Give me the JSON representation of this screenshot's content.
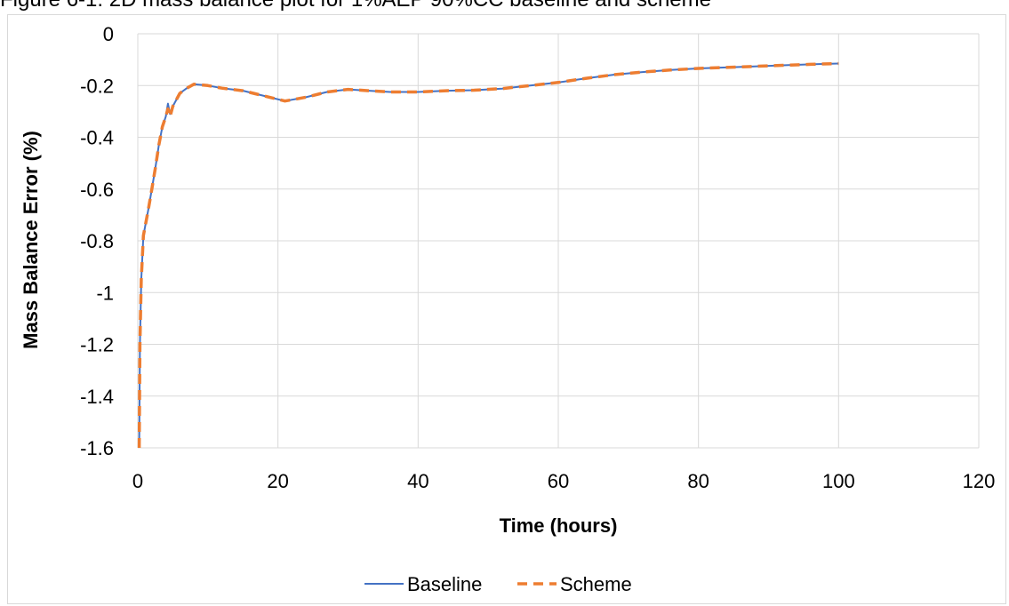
{
  "caption": "Figure 6-1: 2D mass balance plot for 1%AEP 90%CC baseline and scheme",
  "chart_data": {
    "type": "line",
    "title": "",
    "xlabel": "Time (hours)",
    "ylabel": "Mass Balance Error (%)",
    "xlim": [
      0,
      120
    ],
    "ylim": [
      -1.6,
      0
    ],
    "xticks": [
      0,
      20,
      40,
      60,
      80,
      100,
      120
    ],
    "yticks": [
      0,
      -0.2,
      -0.4,
      -0.6,
      -0.8,
      -1,
      -1.2,
      -1.4,
      -1.6
    ],
    "xtick_labels": [
      "0",
      "20",
      "40",
      "60",
      "80",
      "100",
      "120"
    ],
    "ytick_labels": [
      "0",
      "-0.2",
      "-0.4",
      "-0.6",
      "-0.8",
      "-1",
      "-1.2",
      "-1.4",
      "-1.6"
    ],
    "grid": true,
    "legend_position": "bottom",
    "series": [
      {
        "name": "Baseline",
        "color": "#4472c4",
        "style": "solid",
        "points": [
          [
            0.2,
            -1.6
          ],
          [
            0.3,
            -1.2
          ],
          [
            0.5,
            -0.95
          ],
          [
            0.8,
            -0.78
          ],
          [
            1.5,
            -0.68
          ],
          [
            2,
            -0.6
          ],
          [
            2.5,
            -0.52
          ],
          [
            3,
            -0.43
          ],
          [
            3.5,
            -0.36
          ],
          [
            4,
            -0.32
          ],
          [
            4.3,
            -0.27
          ],
          [
            4.6,
            -0.31
          ],
          [
            5,
            -0.28
          ],
          [
            6,
            -0.23
          ],
          [
            7,
            -0.21
          ],
          [
            8,
            -0.195
          ],
          [
            10,
            -0.2
          ],
          [
            12,
            -0.21
          ],
          [
            15,
            -0.22
          ],
          [
            18,
            -0.24
          ],
          [
            21,
            -0.26
          ],
          [
            24,
            -0.245
          ],
          [
            27,
            -0.225
          ],
          [
            30,
            -0.215
          ],
          [
            33,
            -0.22
          ],
          [
            36,
            -0.225
          ],
          [
            40,
            -0.225
          ],
          [
            44,
            -0.22
          ],
          [
            48,
            -0.218
          ],
          [
            52,
            -0.212
          ],
          [
            56,
            -0.2
          ],
          [
            60,
            -0.188
          ],
          [
            64,
            -0.172
          ],
          [
            68,
            -0.158
          ],
          [
            72,
            -0.148
          ],
          [
            76,
            -0.14
          ],
          [
            80,
            -0.134
          ],
          [
            84,
            -0.13
          ],
          [
            88,
            -0.126
          ],
          [
            92,
            -0.122
          ],
          [
            96,
            -0.118
          ],
          [
            100,
            -0.115
          ]
        ]
      },
      {
        "name": "Scheme",
        "color": "#ed7d31",
        "style": "dashed",
        "points": [
          [
            0.2,
            -1.6
          ],
          [
            0.3,
            -1.2
          ],
          [
            0.5,
            -0.95
          ],
          [
            0.8,
            -0.78
          ],
          [
            1.5,
            -0.68
          ],
          [
            2,
            -0.6
          ],
          [
            2.5,
            -0.52
          ],
          [
            3,
            -0.43
          ],
          [
            3.5,
            -0.36
          ],
          [
            4,
            -0.32
          ],
          [
            4.3,
            -0.29
          ],
          [
            4.6,
            -0.32
          ],
          [
            5,
            -0.28
          ],
          [
            6,
            -0.23
          ],
          [
            7,
            -0.21
          ],
          [
            8,
            -0.195
          ],
          [
            10,
            -0.2
          ],
          [
            12,
            -0.21
          ],
          [
            15,
            -0.22
          ],
          [
            18,
            -0.24
          ],
          [
            21,
            -0.26
          ],
          [
            24,
            -0.245
          ],
          [
            27,
            -0.225
          ],
          [
            30,
            -0.215
          ],
          [
            33,
            -0.22
          ],
          [
            36,
            -0.225
          ],
          [
            40,
            -0.225
          ],
          [
            44,
            -0.22
          ],
          [
            48,
            -0.218
          ],
          [
            52,
            -0.212
          ],
          [
            56,
            -0.2
          ],
          [
            60,
            -0.188
          ],
          [
            64,
            -0.172
          ],
          [
            68,
            -0.158
          ],
          [
            72,
            -0.148
          ],
          [
            76,
            -0.14
          ],
          [
            80,
            -0.134
          ],
          [
            84,
            -0.13
          ],
          [
            88,
            -0.126
          ],
          [
            92,
            -0.122
          ],
          [
            96,
            -0.118
          ],
          [
            100,
            -0.115
          ]
        ]
      }
    ]
  }
}
